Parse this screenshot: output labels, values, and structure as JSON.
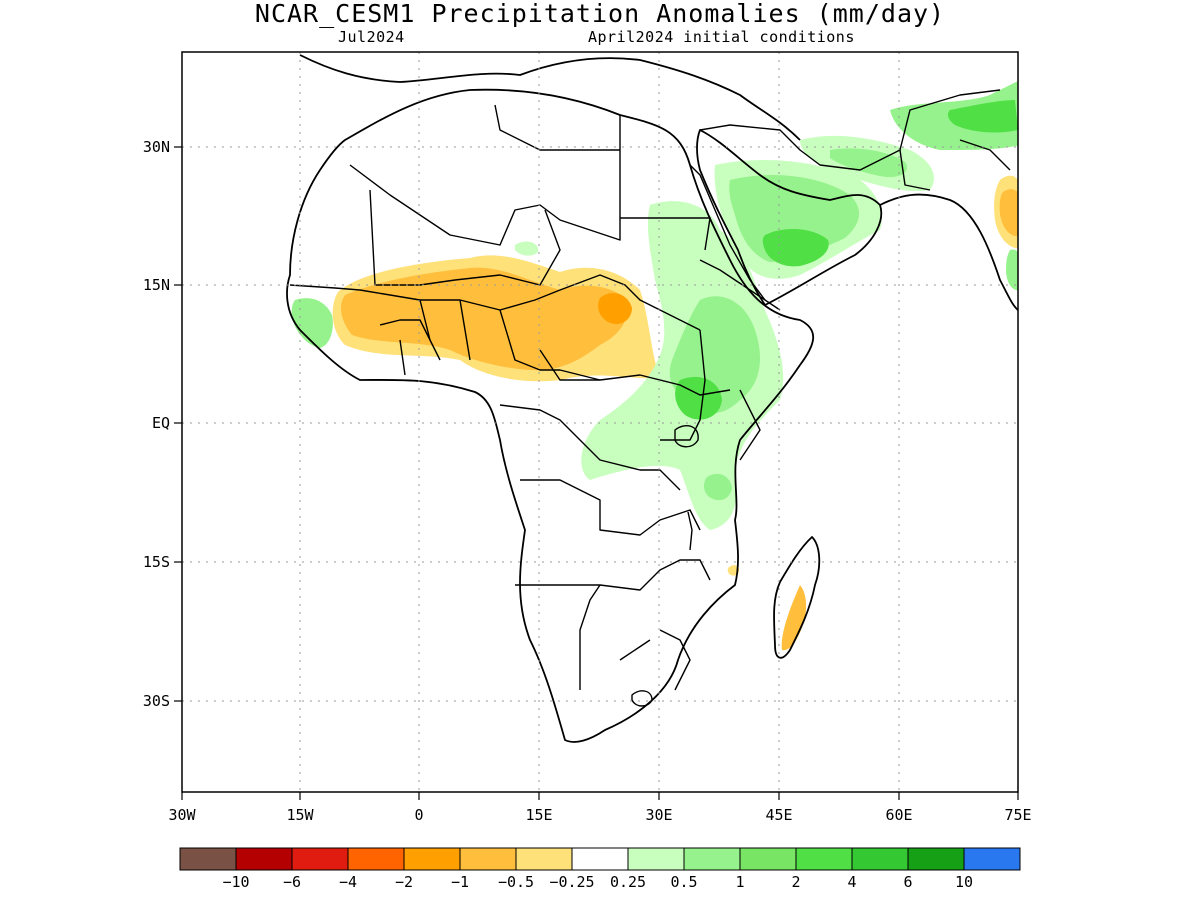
{
  "title": "NCAR_CESM1 Precipitation Anomalies (mm/day)",
  "subtitle_left": "Jul2024",
  "subtitle_right": "April2024 initial conditions",
  "map": {
    "lon_range": [
      -30,
      75
    ],
    "lat_range": [
      -46,
      46
    ],
    "gridlines": true,
    "x_ticks": [
      "30W",
      "15W",
      "0",
      "15E",
      "30E",
      "45E",
      "60E",
      "75E"
    ],
    "y_ticks": [
      "30N",
      "15N",
      "EQ",
      "15S",
      "30S"
    ]
  },
  "colorbar": {
    "colors": [
      "#7a5245",
      "#b40000",
      "#e01b0f",
      "#ff6400",
      "#ffa000",
      "#ffbe3c",
      "#ffe17a",
      "#ffffff",
      "#c8ffbe",
      "#96f28c",
      "#78e664",
      "#50e046",
      "#34c832",
      "#16a016",
      "#2a78f0"
    ],
    "labels": [
      "−10",
      "−6",
      "−4",
      "−2",
      "−1",
      "−0.5",
      "−0.25",
      "0.25",
      "0.5",
      "1",
      "2",
      "4",
      "6",
      "10"
    ]
  },
  "anomaly_colors": {
    "dry_light": "#ffe17a",
    "dry_mid": "#ffbe3c",
    "dry_strong": "#ffa000",
    "wet_light": "#c8ffbe",
    "wet_mid": "#96f28c",
    "wet_strong": "#50e046"
  }
}
